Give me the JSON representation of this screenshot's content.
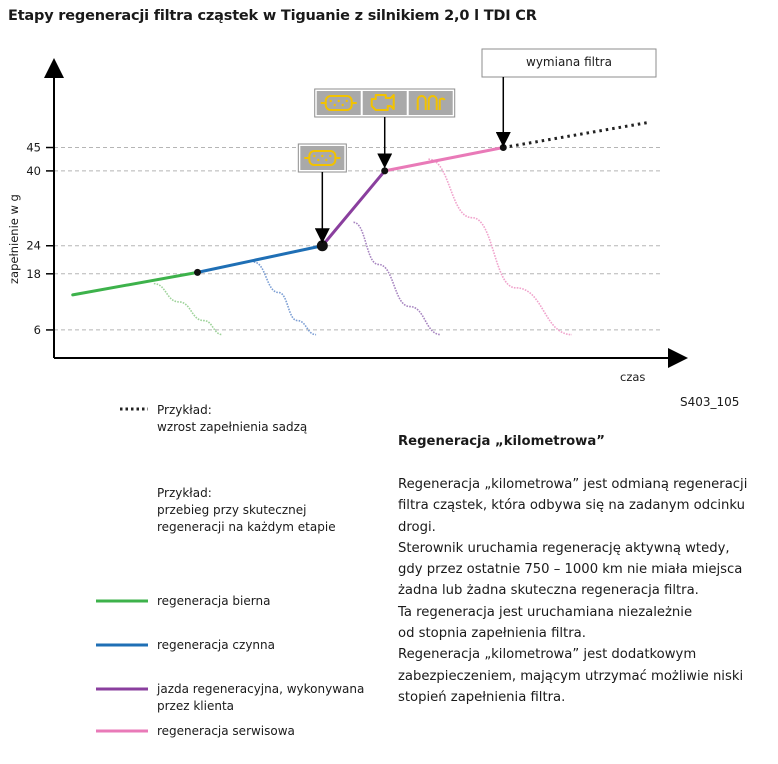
{
  "title": "Etapy regeneracji filtra cząstek w Tiguanie z silnikiem 2,0 l TDI CR",
  "chart_data": {
    "type": "line",
    "xlabel": "czas",
    "ylabel": "zapełnienie w g",
    "yticks": [
      6,
      18,
      24,
      40,
      45
    ],
    "ylim": [
      0,
      62
    ],
    "x_range": [
      0,
      100
    ],
    "grid": "dashed horizontal at y ticks",
    "series": [
      {
        "role": "regeneracja bierna",
        "color": "#3db24b",
        "points": [
          [
            3,
            13.5
          ],
          [
            23,
            18.3
          ]
        ]
      },
      {
        "role": "regeneracja czynna",
        "color": "#1f6fb5",
        "points": [
          [
            23,
            18.3
          ],
          [
            43,
            24
          ]
        ]
      },
      {
        "role": "jazda regeneracyjna",
        "color": "#8a3f9e",
        "points": [
          [
            43,
            24
          ],
          [
            53,
            40
          ]
        ]
      },
      {
        "role": "regeneracja serwisowa",
        "color": "#e97ab8",
        "points": [
          [
            53,
            40
          ],
          [
            72,
            45
          ]
        ]
      },
      {
        "role": "extrapolation",
        "color": "#222222",
        "style": "dotted",
        "points": [
          [
            72,
            45
          ],
          [
            95,
            50.3
          ]
        ]
      }
    ],
    "regeneration_curves": [
      {
        "color": "#9ed39a",
        "points": [
          [
            16,
            15.9
          ],
          [
            20,
            12
          ],
          [
            24,
            8
          ],
          [
            27,
            5
          ]
        ]
      },
      {
        "color": "#7d9fd4",
        "points": [
          [
            32,
            20.5
          ],
          [
            36,
            14
          ],
          [
            39,
            8
          ],
          [
            42,
            5
          ]
        ]
      },
      {
        "color": "#a785c0",
        "points": [
          [
            48,
            29
          ],
          [
            52,
            20
          ],
          [
            57,
            11
          ],
          [
            62,
            5
          ]
        ]
      },
      {
        "color": "#f0a3cc",
        "points": [
          [
            60,
            42.5
          ],
          [
            67,
            30
          ],
          [
            74,
            15
          ],
          [
            83,
            5
          ]
        ]
      }
    ],
    "callouts": [
      {
        "at": [
          43,
          24
        ],
        "icons": [
          "filter-icon"
        ]
      },
      {
        "at": [
          53,
          40
        ],
        "icons": [
          "filter-icon",
          "engine-icon",
          "glow-plug-icon"
        ]
      },
      {
        "at": [
          72,
          45
        ],
        "label": "wymiana filtra"
      }
    ],
    "figure_code": "S403_105"
  },
  "legend": {
    "example1": [
      "Przykład:",
      "wzrost zapełnienia sadzą"
    ],
    "example2": [
      "Przykład:",
      "przebieg przy skutecznej",
      "regeneracji na każdym etapie"
    ],
    "items": [
      {
        "label": "regeneracja bierna",
        "color": "#3db24b"
      },
      {
        "label": "regeneracja czynna",
        "color": "#1f6fb5"
      },
      {
        "label": "jazda regeneracyjna, wykonywana",
        "label2": "przez klienta",
        "color": "#8a3f9e"
      },
      {
        "label": "regeneracja serwisowa",
        "color": "#e97ab8"
      }
    ]
  },
  "article": {
    "heading": "Regeneracja „kilometrowa”",
    "lines": [
      "Regeneracja „kilometrowa” jest odmianą regeneracji",
      "filtra cząstek, która odbywa się na zadanym odcinku",
      "drogi.",
      "Sterownik uruchamia regenerację aktywną wtedy,",
      "gdy przez ostatnie 750 – 1000 km nie miała miejsca",
      "żadna lub żadna skuteczna regeneracja filtra.",
      "Ta regeneracja jest uruchamiana niezależnie",
      "od stopnia zapełnienia filtra.",
      "Regeneracja „kilometrowa” jest dodatkowym",
      "zabezpieczeniem, mającym utrzymać możliwie niski",
      "stopień zapełnienia filtra."
    ]
  }
}
